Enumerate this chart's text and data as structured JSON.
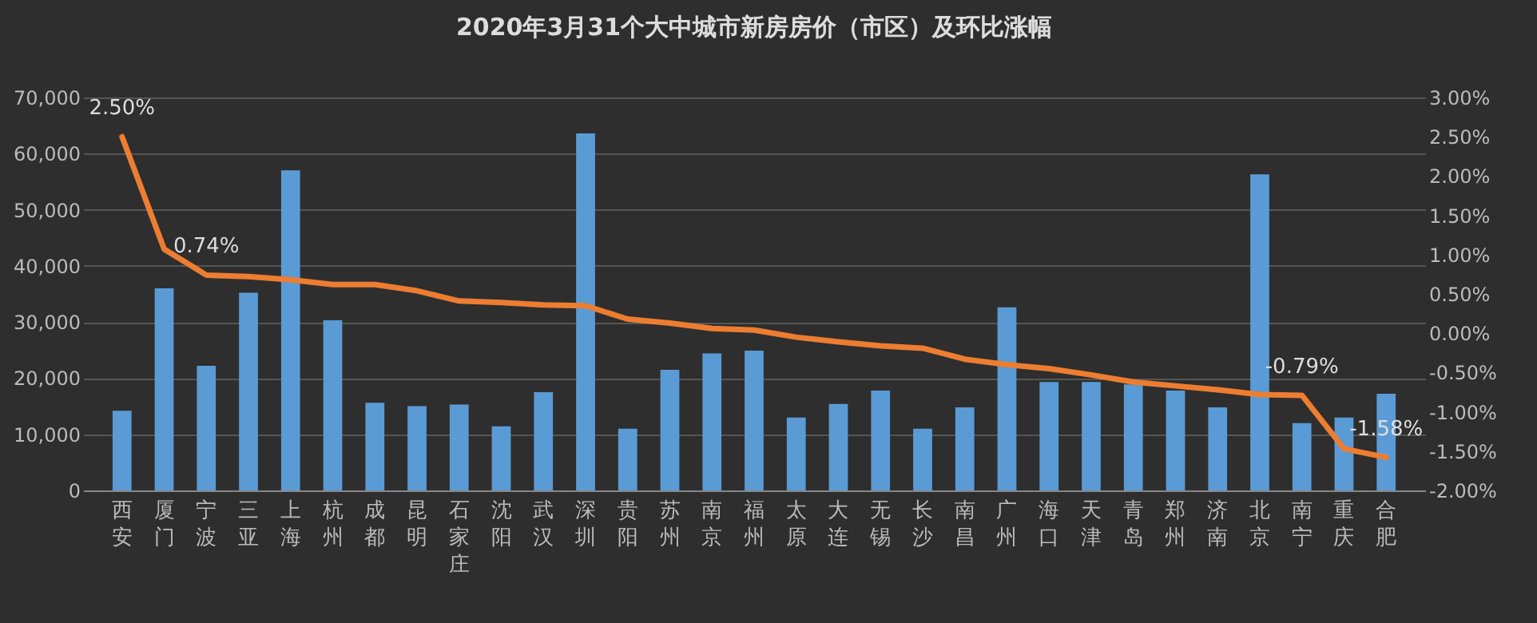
{
  "chart_data": {
    "type": "bar",
    "title": "2020年3月31个大中城市新房房价（市区）及环比涨幅",
    "categories": [
      "西安",
      "厦门",
      "宁波",
      "三亚",
      "上海",
      "杭州",
      "成都",
      "昆明",
      "石家庄",
      "沈阳",
      "武汉",
      "深圳",
      "贵阳",
      "苏州",
      "南京",
      "福州",
      "太原",
      "大连",
      "无锡",
      "长沙",
      "南昌",
      "广州",
      "海口",
      "天津",
      "青岛",
      "郑州",
      "济南",
      "北京",
      "南宁",
      "重庆",
      "合肥"
    ],
    "series": [
      {
        "color": "#5b9bd5",
        "values": [
          14200,
          36000,
          22200,
          35200,
          57000,
          30300,
          15600,
          15000,
          15300,
          11400,
          17500,
          63600,
          11000,
          21500,
          24400,
          24900,
          13000,
          15400,
          17800,
          11000,
          14800,
          32600,
          19300,
          19300,
          18900,
          17800,
          14800,
          56300,
          12000,
          13000,
          17200
        ]
      },
      {
        "type": "line",
        "axis": "y2",
        "color": "#ed7d31",
        "values": [
          2.5,
          1.07,
          0.74,
          0.72,
          0.68,
          0.62,
          0.62,
          0.54,
          0.41,
          0.39,
          0.36,
          0.35,
          0.18,
          0.13,
          0.06,
          0.04,
          -0.05,
          -0.11,
          -0.16,
          -0.19,
          -0.33,
          -0.4,
          -0.45,
          -0.53,
          -0.62,
          -0.67,
          -0.72,
          -0.78,
          -0.79,
          -1.47,
          -1.58
        ],
        "value_labels": [
          "2.50%",
          null,
          "0.74%",
          null,
          null,
          null,
          null,
          null,
          null,
          null,
          null,
          null,
          null,
          null,
          null,
          null,
          null,
          null,
          null,
          null,
          null,
          null,
          null,
          null,
          null,
          null,
          null,
          null,
          "-0.79%",
          null,
          "-1.58%"
        ]
      }
    ],
    "ylim": [
      0,
      70000
    ],
    "yticks": [
      0,
      {
        "value": 10000,
        "label": "10,000"
      },
      {
        "value": 20000,
        "label": "20,000"
      },
      {
        "value": 30000,
        "label": "30,000"
      },
      {
        "value": 40000,
        "label": "40,000"
      },
      {
        "value": 50000,
        "label": "50,000"
      },
      {
        "value": 60000,
        "label": "60,000"
      },
      {
        "value": 70000,
        "label": "70,000"
      }
    ],
    "y2lim": [
      -2,
      3
    ],
    "y2ticks": [
      {
        "value": -2,
        "label": "-2.00%"
      },
      {
        "value": -1.5,
        "label": "-1.50%"
      },
      {
        "value": -1,
        "label": "-1.00%"
      },
      {
        "value": -0.5,
        "label": "-0.50%"
      },
      {
        "value": 0,
        "label": "0.00%"
      },
      {
        "value": 0.5,
        "label": "0.50%"
      },
      {
        "value": 1,
        "label": "1.00%"
      },
      {
        "value": 1.5,
        "label": "1.50%"
      },
      {
        "value": 2,
        "label": "2.00%"
      },
      {
        "value": 2.5,
        "label": "2.50%"
      },
      {
        "value": 3,
        "label": "3.00%"
      }
    ],
    "grid": "y"
  }
}
